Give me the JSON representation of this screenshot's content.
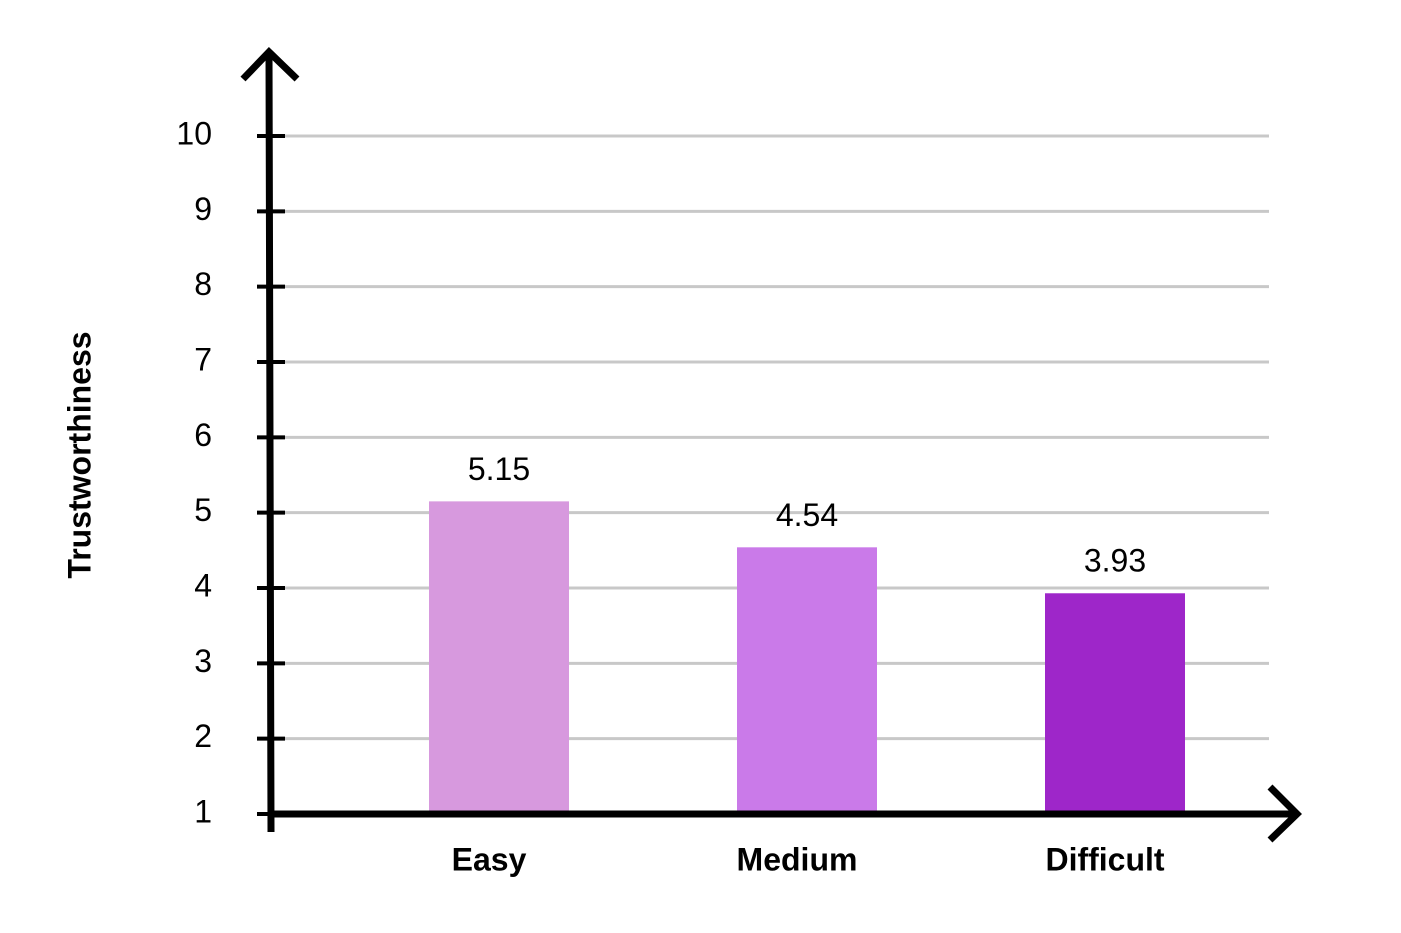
{
  "chart_data": {
    "type": "bar",
    "ylabel": "Trustworthiness",
    "categories": [
      "Easy",
      "Medium",
      "Difficult"
    ],
    "values": [
      5.15,
      4.54,
      3.93
    ],
    "colors": [
      "#d799de",
      "#ca7ae9",
      "#9e26c9"
    ],
    "ylim": [
      1,
      10
    ],
    "yticks": [
      1,
      2,
      3,
      4,
      5,
      6,
      7,
      8,
      9,
      10
    ],
    "grid": true
  }
}
